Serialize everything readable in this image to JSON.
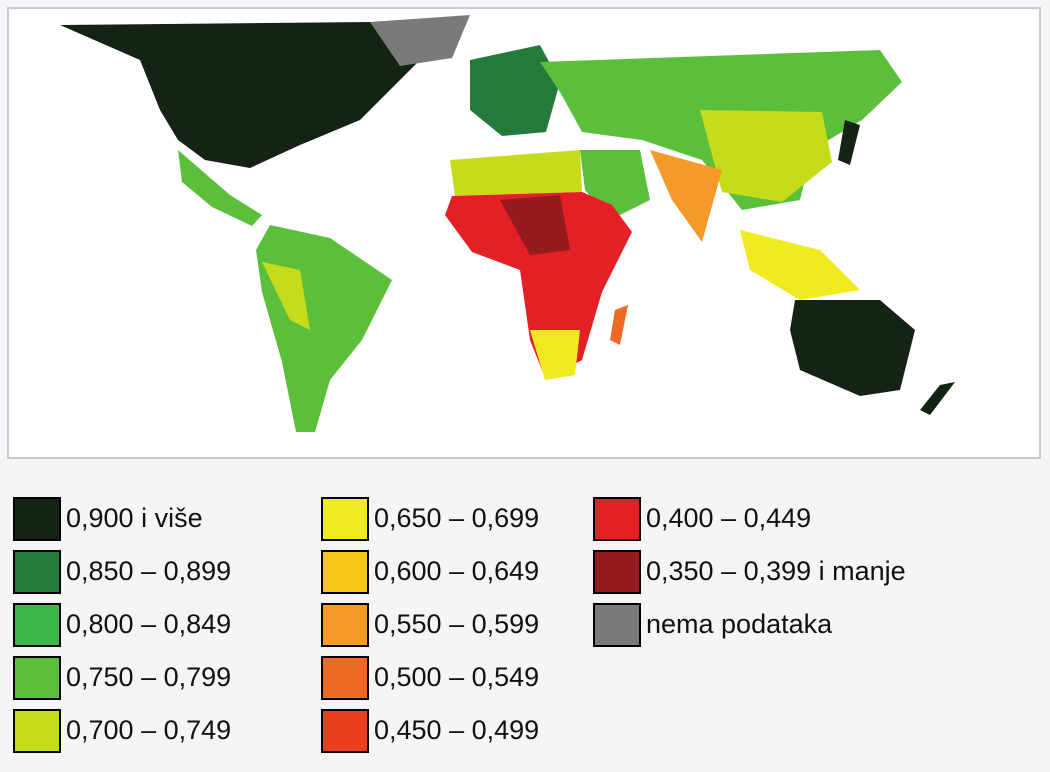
{
  "legend": {
    "items": [
      {
        "label": "0,900 i više",
        "color": "#152315"
      },
      {
        "label": "0,850 – 0,899",
        "color": "#237a3a"
      },
      {
        "label": "0,800 – 0,849",
        "color": "#3db54a"
      },
      {
        "label": "0,750 – 0,799",
        "color": "#5cbf3c"
      },
      {
        "label": "0,700 – 0,749",
        "color": "#c5dc1a"
      },
      {
        "label": "0,650 – 0,699",
        "color": "#f0ea1e"
      },
      {
        "label": "0,600 – 0,649",
        "color": "#f5c518"
      },
      {
        "label": "0,550 – 0,599",
        "color": "#f39a28"
      },
      {
        "label": "0,500 – 0,549",
        "color": "#ee6a22"
      },
      {
        "label": "0,450 – 0,499",
        "color": "#e8401f"
      },
      {
        "label": "0,400 – 0,449",
        "color": "#e41f26"
      },
      {
        "label": "0,350 – 0,399 i manje",
        "color": "#961b1e"
      },
      {
        "label": "nema podataka",
        "color": "#7a7a7a"
      }
    ]
  }
}
